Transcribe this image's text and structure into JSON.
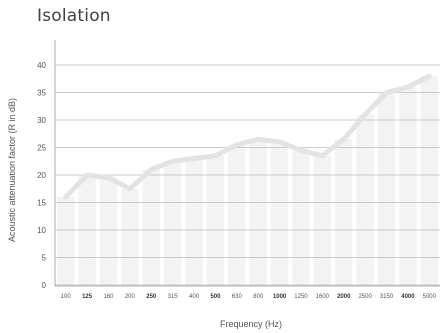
{
  "chart_data": {
    "type": "line",
    "title": "Isolation",
    "xlabel": "Frequency (Hz)",
    "ylabel": "Acoustic attenuation factor (R in dB)",
    "ylim": [
      0,
      40
    ],
    "yticks": [
      0,
      5,
      10,
      15,
      20,
      25,
      30,
      35,
      40
    ],
    "categories": [
      "100",
      "125",
      "160",
      "200",
      "250",
      "315",
      "400",
      "500",
      "630",
      "800",
      "1000",
      "1250",
      "1600",
      "2000",
      "2500",
      "3150",
      "4000",
      "5000"
    ],
    "bold_categories": [
      "125",
      "250",
      "500",
      "1000",
      "2000",
      "4000"
    ],
    "series": [
      {
        "values": [
          16,
          20,
          19.5,
          17.5,
          21,
          22.5,
          23,
          23.5,
          25.5,
          26.5,
          26,
          24.5,
          23.5,
          26.5,
          31,
          35,
          36,
          38
        ]
      }
    ],
    "grid": true,
    "colors": {
      "line": "#e3e3e3",
      "bars": "#f3f3f3",
      "grid": "#bdbdbd",
      "axis": "#9a9a9a",
      "text": "#555555",
      "title": "#404040"
    }
  }
}
